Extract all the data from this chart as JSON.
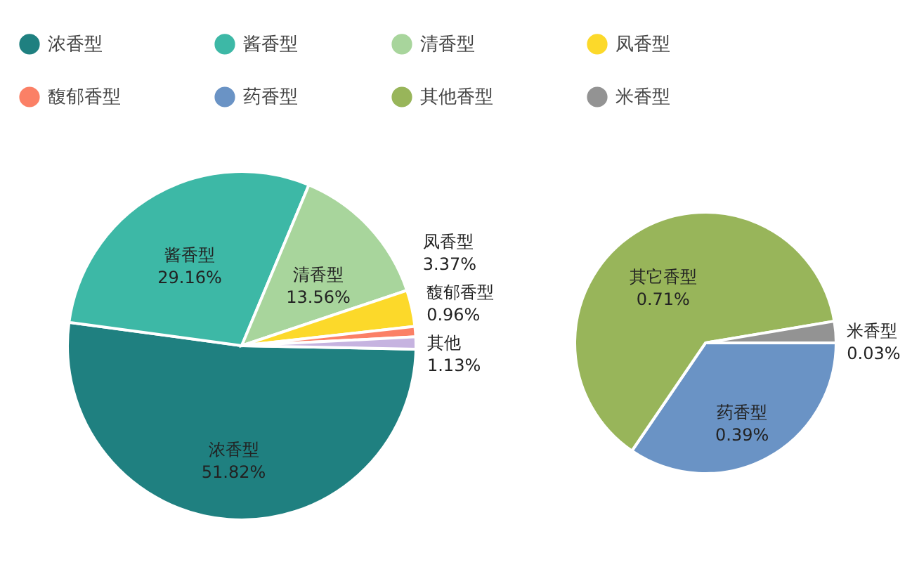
{
  "chart_data": [
    {
      "type": "pie",
      "categories": [
        "浓香型",
        "酱香型",
        "清香型",
        "凤香型",
        "馥郁香型",
        "其他"
      ],
      "values": [
        51.82,
        29.16,
        13.56,
        3.37,
        0.96,
        1.13
      ],
      "colors": [
        "#1f8080",
        "#3db8a6",
        "#a8d59c",
        "#fcd92a",
        "#fb8066",
        "#c6b3e0"
      ],
      "value_labels": [
        "51.82%",
        "29.16%",
        "13.56%",
        "3.37%",
        "0.96%",
        "1.13%"
      ],
      "legend": "top"
    },
    {
      "type": "pie",
      "categories": [
        "药香型",
        "其他香型",
        "米香型"
      ],
      "values": [
        0.39,
        0.71,
        0.03
      ],
      "colors": [
        "#6a93c5",
        "#98b55a",
        "#939393"
      ],
      "value_labels": [
        "0.39%",
        "0.71%",
        "0.03%"
      ],
      "legend": "top",
      "annotations": [
        {
          "text": "其它香型",
          "x": "其他香型"
        }
      ]
    }
  ]
}
